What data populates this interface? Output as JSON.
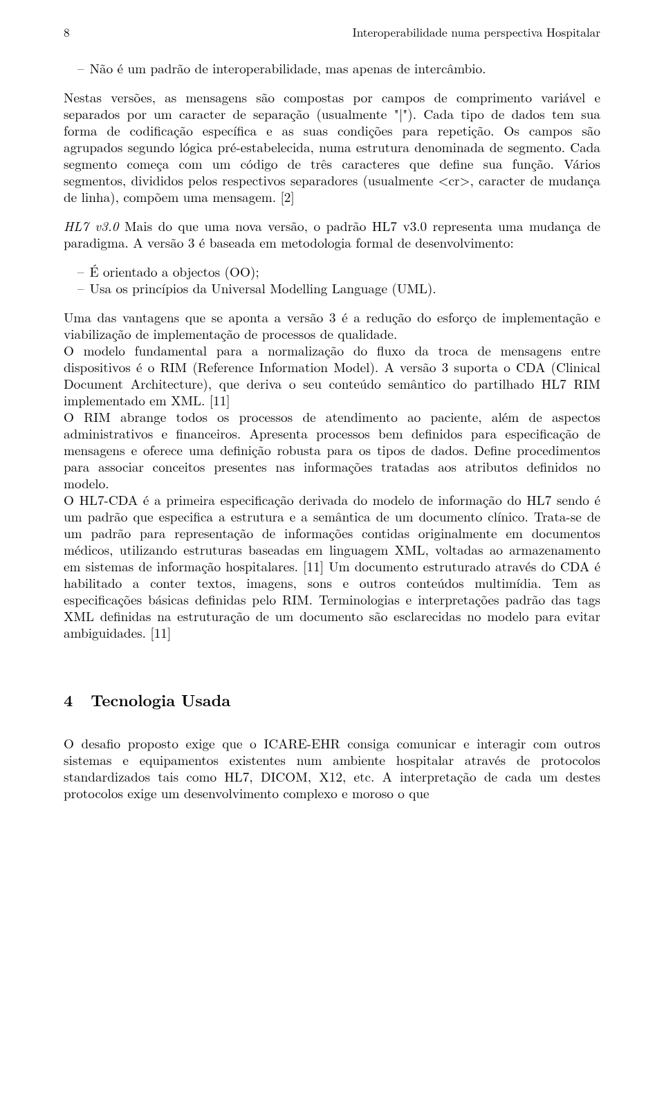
{
  "runhead": {
    "page": "8",
    "title": "Interoperabilidade numa perspectiva Hospitalar"
  },
  "bullet1": {
    "text": "Não é um padrão de interoperabilidade, mas apenas de intercâmbio."
  },
  "para1": "Nestas versões, as mensagens são compostas por campos de comprimento variável e separados por um caracter de separação (usualmente \"|\"). Cada tipo de dados tem sua forma de codificação específica e as suas condições para repetição. Os campos são agrupados segundo lógica pré-estabelecida, numa estrutura denominada de segmento. Cada segmento começa com um código de três caracteres que define sua função. Vários segmentos, divididos pelos respectivos separadores (usualmente <cr>, caracter de mudança de linha), compõem uma mensagem. [2]",
  "para2_lead": "HL7 v3.0",
  "para2_rest": " Mais do que uma nova versão, o padrão HL7 v3.0 representa uma mudança de paradigma. A versão 3 é baseada em metodologia formal de desenvolvimento:",
  "bullets2": [
    "É orientado a objectos (OO);",
    "Usa os princípios da Universal Modelling Language (UML)."
  ],
  "para3a": "Uma das vantagens que se aponta a versão 3 é a redução do esforço de implementação e viabilização de implementação de processos de qualidade.",
  "para3b": "O modelo fundamental para a normalização do fluxo da troca de mensagens entre dispositivos é o RIM (Reference Information Model). A versão 3 suporta o CDA (Clinical Document Architecture), que deriva o seu conteúdo semântico do partilhado HL7 RIM implementado em XML. [11]",
  "para3c": "O RIM abrange todos os processos de atendimento ao paciente, além de aspectos administrativos e financeiros. Apresenta processos bem definidos para especificação de mensagens e oferece uma definição robusta para os tipos de dados. Define procedimentos para associar conceitos presentes nas informações tratadas aos atributos definidos no modelo.",
  "para3d": "O HL7-CDA é a primeira especificação derivada do modelo de informação do HL7 sendo é um padrão que especifica a estrutura e a semântica de um documento clínico. Trata-se de um padrão para representação de informações contidas originalmente em documentos médicos, utilizando estruturas baseadas em linguagem XML, voltadas ao armazenamento em sistemas de informação hospitalares. [11] Um documento estruturado através do CDA é habilitado a conter textos, imagens, sons e outros conteúdos multimídia. Tem as especificações básicas definidas pelo RIM. Terminologias e interpretações padrão das tags XML definidas na estruturação de um documento são esclarecidas no modelo para evitar ambiguidades. [11]",
  "section": {
    "num": "4",
    "title": "Tecnologia Usada"
  },
  "para4": "O desafio proposto exige que o ICARE-EHR consiga comunicar e interagir com outros sistemas e equipamentos existentes num ambiente hospitalar através de protocolos standardizados tais como HL7, DICOM, X12, etc. A interpretação de cada um destes protocolos exige um desenvolvimento complexo e moroso o que"
}
